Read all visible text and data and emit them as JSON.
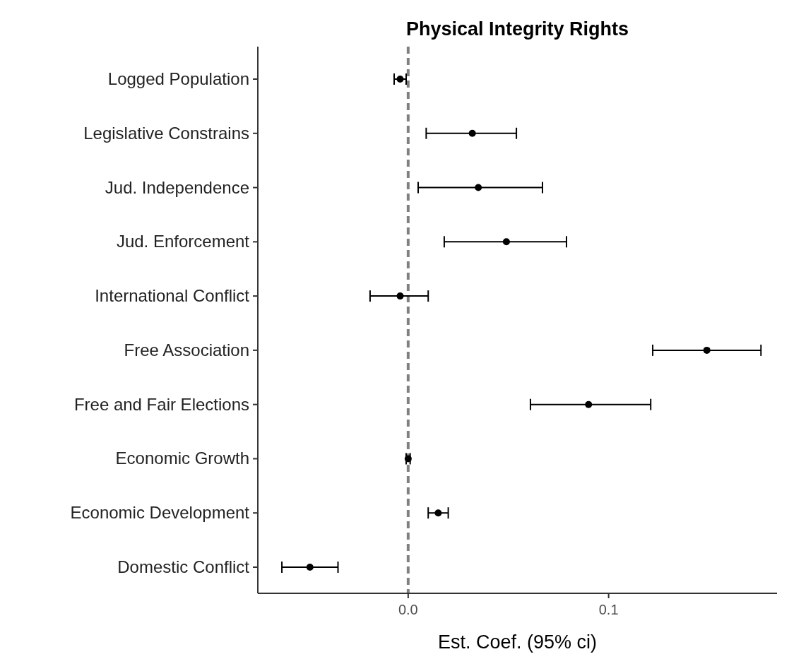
{
  "chart_data": {
    "type": "scatter",
    "title": "Physical Integrity Rights",
    "xlabel": "Est. Coef. (95% ci)",
    "orientation": "horizontal",
    "categories": [
      "Logged Population",
      "Legislative Constrains",
      "Jud. Independence",
      "Jud. Enforcement",
      "International Conflict",
      "Free Association",
      "Free and Fair Elections",
      "Economic Growth",
      "Economic Development",
      "Domestic Conflict"
    ],
    "values": [
      -0.004,
      0.032,
      0.035,
      0.049,
      -0.004,
      0.149,
      0.09,
      0.0,
      0.015,
      -0.049
    ],
    "errors": [
      [
        -0.007,
        -0.001
      ],
      [
        0.009,
        0.054
      ],
      [
        0.005,
        0.067
      ],
      [
        0.018,
        0.079
      ],
      [
        -0.019,
        0.01
      ],
      [
        0.122,
        0.176
      ],
      [
        0.061,
        0.121
      ],
      [
        -0.001,
        0.001
      ],
      [
        0.01,
        0.02
      ],
      [
        -0.063,
        -0.035
      ]
    ],
    "color": "#000000",
    "marker": "circle",
    "xlim": [
      -0.075,
      0.184
    ],
    "xticks": [
      {
        "value": 0,
        "label": "0.0"
      },
      0.1
    ],
    "ref_lines": [
      {
        "axis": "x",
        "value": 0,
        "color": "#808080",
        "line_style": "dashed"
      }
    ],
    "grid": false
  }
}
